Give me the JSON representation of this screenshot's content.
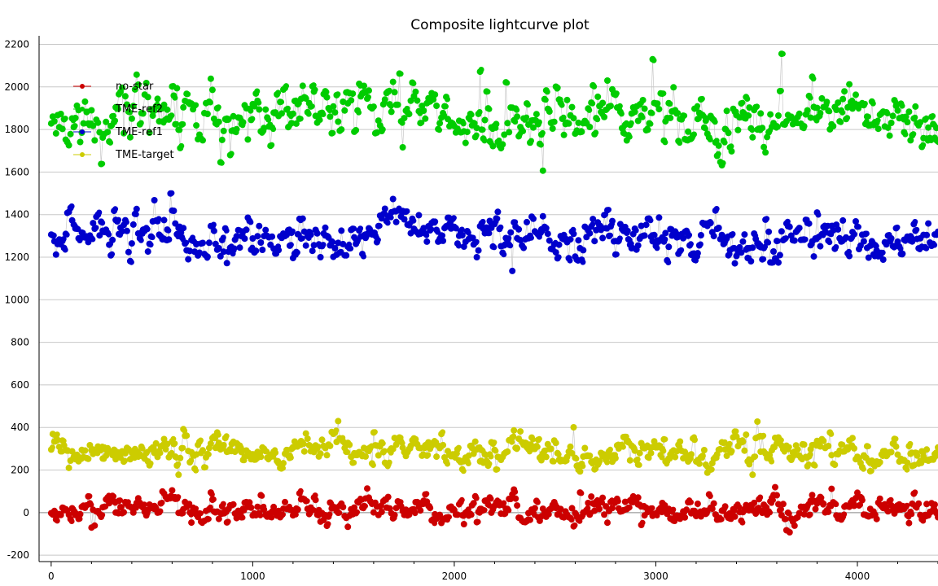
{
  "chart_data": {
    "type": "scatter",
    "title": "Composite lightcurve plot",
    "xlabel": "",
    "ylabel": "",
    "xlim": [
      -60,
      4400
    ],
    "ylim": [
      -230,
      2240
    ],
    "x_ticks": [
      0,
      1000,
      2000,
      3000,
      4000
    ],
    "y_ticks": [
      -200,
      0,
      200,
      400,
      600,
      800,
      1000,
      1200,
      1400,
      1600,
      1800,
      2000,
      2200
    ],
    "grid": true,
    "legend_position": "top-left",
    "x_range": [
      0,
      4400
    ],
    "series": [
      {
        "name": "no-star",
        "color": "#cc0000",
        "x": [
          0,
          250,
          500,
          750,
          1000,
          1250,
          1500,
          1750,
          2000,
          2250,
          2500,
          2750,
          3000,
          3250,
          3500,
          3750,
          4000,
          4250,
          4400
        ],
        "y": [
          5,
          20,
          25,
          15,
          10,
          20,
          15,
          25,
          10,
          15,
          15,
          15,
          20,
          10,
          20,
          15,
          10,
          5,
          10
        ],
        "spread": 45
      },
      {
        "name": "TME-ref2",
        "color": "#00cc00",
        "x": [
          0,
          250,
          500,
          750,
          1000,
          1250,
          1500,
          1750,
          2000,
          2250,
          2500,
          2750,
          3000,
          3250,
          3500,
          3750,
          4000,
          4250,
          4400
        ],
        "y": [
          1850,
          1840,
          1870,
          1860,
          1830,
          1900,
          1900,
          1870,
          1860,
          1850,
          1850,
          1870,
          1860,
          1850,
          1840,
          1860,
          1880,
          1850,
          1820
        ],
        "spread": 110
      },
      {
        "name": "TME-ref1",
        "color": "#0000cc",
        "x": [
          0,
          250,
          500,
          750,
          1000,
          1250,
          1500,
          1750,
          2000,
          2250,
          2500,
          2750,
          3000,
          3250,
          3500,
          3750,
          4000,
          4250,
          4400
        ],
        "y": [
          1290,
          1300,
          1300,
          1290,
          1260,
          1320,
          1280,
          1300,
          1310,
          1330,
          1330,
          1280,
          1280,
          1310,
          1250,
          1280,
          1290,
          1300,
          1280
        ],
        "spread": 80
      },
      {
        "name": "TME-target",
        "color": "#cccc00",
        "x": [
          0,
          250,
          500,
          750,
          1000,
          1250,
          1500,
          1750,
          2000,
          2250,
          2500,
          2750,
          3000,
          3250,
          3500,
          3750,
          4000,
          4250,
          4400
        ],
        "y": [
          290,
          290,
          300,
          320,
          290,
          300,
          290,
          290,
          280,
          290,
          290,
          270,
          280,
          280,
          300,
          300,
          290,
          280,
          270
        ],
        "spread": 55
      }
    ],
    "legend": [
      {
        "label": "no-star",
        "color": "#cc0000"
      },
      {
        "label": "TME-ref2",
        "color": "#00cc00"
      },
      {
        "label": "TME-ref1",
        "color": "#0000cc"
      },
      {
        "label": "TME-target",
        "color": "#cccc00"
      }
    ],
    "colors": {
      "grid": "#c8c8c8",
      "axis": "#000000",
      "connector": "#c8c8c8"
    }
  }
}
